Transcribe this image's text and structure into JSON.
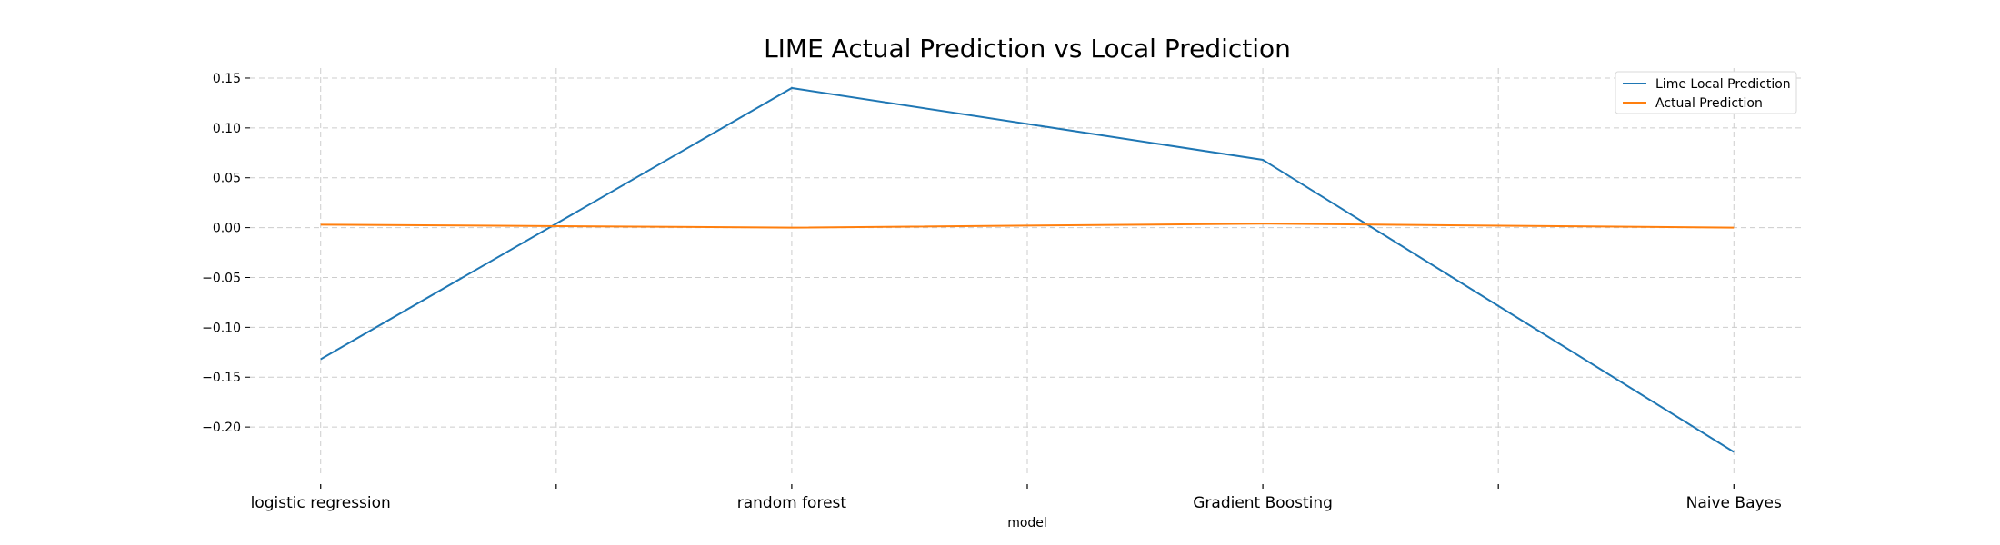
{
  "chart_data": {
    "type": "line",
    "title": "LIME Actual Prediction vs Local Prediction",
    "xlabel": "model",
    "ylabel": "",
    "categories": [
      "logistic regression",
      "random forest",
      "Gradient Boosting",
      "Naive Bayes"
    ],
    "x": [
      0,
      1,
      2,
      3
    ],
    "xlim": [
      -0.15,
      3.15
    ],
    "xticks_minor": [
      0.5,
      1.5,
      2.5
    ],
    "ylim": [
      -0.25,
      0.16
    ],
    "yticks": [
      -0.2,
      -0.15,
      -0.1,
      -0.05,
      0.0,
      0.05,
      0.1,
      0.15
    ],
    "ytick_labels": [
      "−0.20",
      "−0.15",
      "−0.10",
      "−0.05",
      "0.00",
      "0.05",
      "0.10",
      "0.15"
    ],
    "grid": true,
    "legend_position": "top-right",
    "series": [
      {
        "name": "Lime Local Prediction",
        "color": "#1f77b4",
        "values": [
          -0.132,
          0.14,
          0.068,
          -0.225
        ]
      },
      {
        "name": "Actual Prediction",
        "color": "#ff7f0e",
        "values": [
          0.003,
          0.0,
          0.004,
          0.0
        ]
      }
    ]
  }
}
